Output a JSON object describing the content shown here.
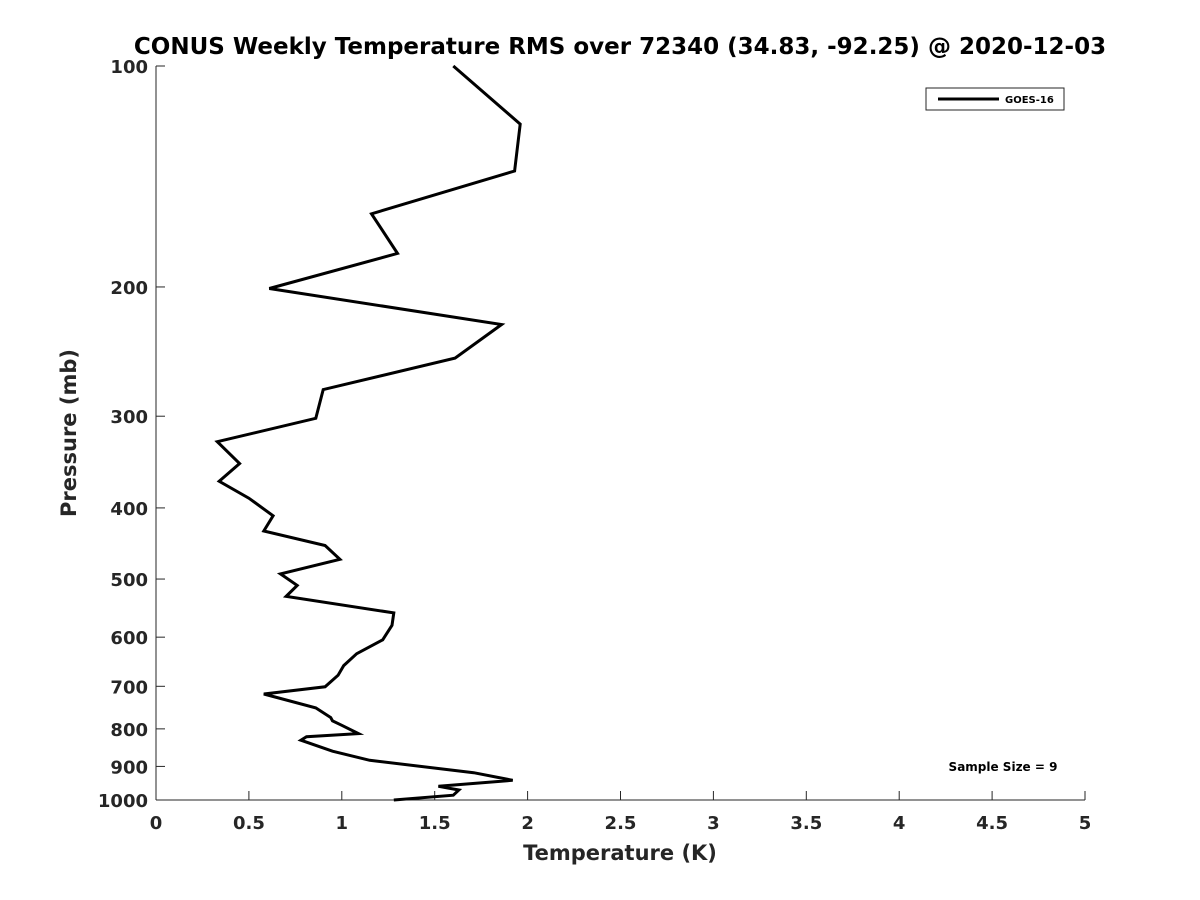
{
  "chart_data": {
    "type": "line",
    "title": "CONUS Weekly Temperature RMS over 72340 (34.83, -92.25) @ 2020-12-03",
    "xlabel": "Temperature (K)",
    "ylabel": "Pressure (mb)",
    "xlim": [
      0,
      5
    ],
    "ylim": [
      1000,
      100
    ],
    "yscale": "log",
    "y_reversed": true,
    "x_ticks": [
      0,
      0.5,
      1,
      1.5,
      2,
      2.5,
      3,
      3.5,
      4,
      4.5,
      5
    ],
    "x_tick_labels": [
      "0",
      "0.5",
      "1",
      "1.5",
      "2",
      "2.5",
      "3",
      "3.5",
      "4",
      "4.5",
      "5"
    ],
    "y_ticks": [
      100,
      200,
      300,
      400,
      500,
      600,
      700,
      800,
      900,
      1000
    ],
    "y_tick_labels": [
      "100",
      "200",
      "300",
      "400",
      "500",
      "600",
      "700",
      "800",
      "900",
      "1000"
    ],
    "grid": false,
    "legend_position": "top-right",
    "line_color": "#000000",
    "series": [
      {
        "name": "GOES-16",
        "x": [
          1.6,
          1.96,
          1.93,
          1.16,
          1.3,
          0.61,
          1.86,
          1.61,
          0.9,
          0.86,
          0.33,
          0.45,
          0.34,
          0.5,
          0.63,
          0.58,
          0.91,
          0.99,
          0.67,
          0.76,
          0.7,
          1.28,
          1.27,
          1.22,
          1.08,
          1.01,
          0.98,
          0.91,
          0.58,
          0.86,
          0.94,
          0.95,
          1.0,
          1.09,
          0.81,
          0.78,
          0.95,
          1.15,
          1.71,
          1.92,
          1.52,
          1.63,
          1.6,
          1.28
        ],
        "y": [
          100,
          120,
          139,
          159,
          180,
          201,
          225,
          250,
          276,
          302,
          325,
          348,
          368,
          388,
          410,
          430,
          450,
          470,
          492,
          510,
          528,
          556,
          578,
          605,
          632,
          656,
          676,
          701,
          717,
          749,
          772,
          780,
          791,
          812,
          820,
          829,
          858,
          883,
          918,
          940,
          958,
          969,
          985,
          1000
        ]
      }
    ],
    "annotations": [
      "Sample Size = 9"
    ]
  }
}
